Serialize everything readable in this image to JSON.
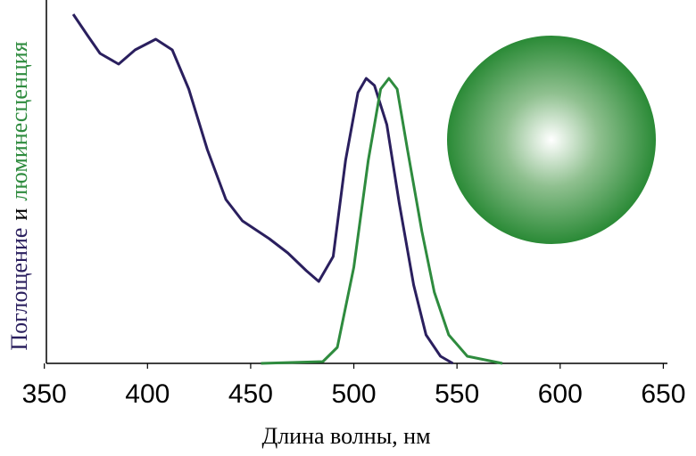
{
  "chart_data": {
    "type": "line",
    "xlabel": "Длина волны, нм",
    "ylabel_parts": [
      {
        "text": "Поглощение",
        "color": "#2a1f5e"
      },
      {
        "text": "и",
        "color": "#000000"
      },
      {
        "text": "люминесценция",
        "color": "#2e8b3e"
      }
    ],
    "xlim": [
      351,
      652
    ],
    "xticks": [
      350,
      400,
      450,
      500,
      550,
      600,
      650
    ],
    "ylim": [
      0,
      1
    ],
    "series": [
      {
        "color": "#2a1f5e",
        "x": [
          364,
          371,
          377,
          386,
          394,
          404,
          412,
          420,
          429,
          438,
          446,
          459,
          468,
          477,
          483,
          490,
          496,
          502,
          506,
          510,
          516,
          522,
          529,
          535,
          542,
          548
        ],
        "values": [
          0.98,
          0.92,
          0.87,
          0.84,
          0.88,
          0.91,
          0.88,
          0.77,
          0.6,
          0.46,
          0.4,
          0.35,
          0.31,
          0.26,
          0.23,
          0.3,
          0.57,
          0.76,
          0.8,
          0.78,
          0.67,
          0.45,
          0.22,
          0.08,
          0.02,
          0
        ]
      },
      {
        "color": "#2e8b3e",
        "x": [
          455,
          485,
          492,
          500,
          507,
          513,
          517,
          521,
          526,
          533,
          539,
          546,
          555,
          572
        ],
        "values": [
          0,
          0.005,
          0.045,
          0.27,
          0.57,
          0.77,
          0.8,
          0.77,
          0.6,
          0.37,
          0.2,
          0.08,
          0.02,
          0
        ]
      }
    ]
  }
}
